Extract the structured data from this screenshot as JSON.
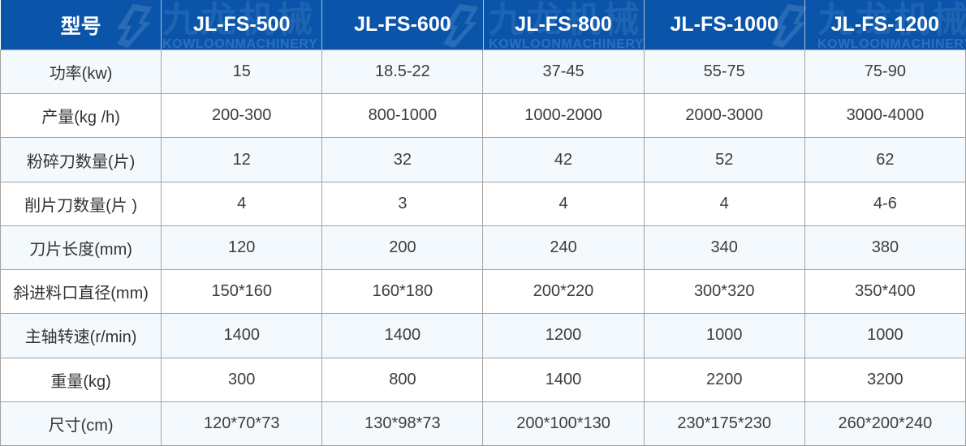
{
  "table": {
    "header": {
      "label": "型号",
      "models": [
        "JL-FS-500",
        "JL-FS-600",
        "JL-FS-800",
        "JL-FS-1000",
        "JL-FS-1200"
      ]
    },
    "rows": [
      {
        "label": "功率(kw)",
        "values": [
          "15",
          "18.5-22",
          "37-45",
          "55-75",
          "75-90"
        ]
      },
      {
        "label": "产量(kg /h)",
        "values": [
          "200-300",
          "800-1000",
          "1000-2000",
          "2000-3000",
          "3000-4000"
        ]
      },
      {
        "label": "粉碎刀数量(片)",
        "values": [
          "12",
          "32",
          "42",
          "52",
          "62"
        ]
      },
      {
        "label": "削片刀数量(片 )",
        "values": [
          "4",
          "3",
          "4",
          "4",
          "4-6"
        ]
      },
      {
        "label": "刀片长度(mm)",
        "values": [
          "120",
          "200",
          "240",
          "340",
          "380"
        ]
      },
      {
        "label": "斜进料口直径(mm)",
        "values": [
          "150*160",
          "160*180",
          "200*220",
          "300*320",
          "350*400"
        ]
      },
      {
        "label": "主轴转速(r/min)",
        "values": [
          "1400",
          "1400",
          "1200",
          "1000",
          "1000"
        ]
      },
      {
        "label": "重量(kg)",
        "values": [
          "300",
          "800",
          "1400",
          "2200",
          "3200"
        ]
      },
      {
        "label": "尺寸(cm)",
        "values": [
          "120*70*73",
          "130*98*73",
          "200*100*130",
          "230*175*230",
          "260*200*240"
        ]
      }
    ],
    "watermark": {
      "cn": "九龙机械",
      "en": "KOWLOONMACHINERY"
    },
    "colors": {
      "header_bg": "#0a55a9",
      "header_text": "#ffffff",
      "row_alt_bg": "#f4f9fd",
      "row_bg": "#ffffff",
      "border": "#a2a2a2",
      "header_divider": "#c9d2de",
      "cell_text": "#3d3d3d",
      "label_text": "#333333",
      "watermark_cn_color": "#1e64b2",
      "watermark_en_color": "#2e70bd",
      "watermark_logo_color": "#2a6bb8"
    }
  }
}
